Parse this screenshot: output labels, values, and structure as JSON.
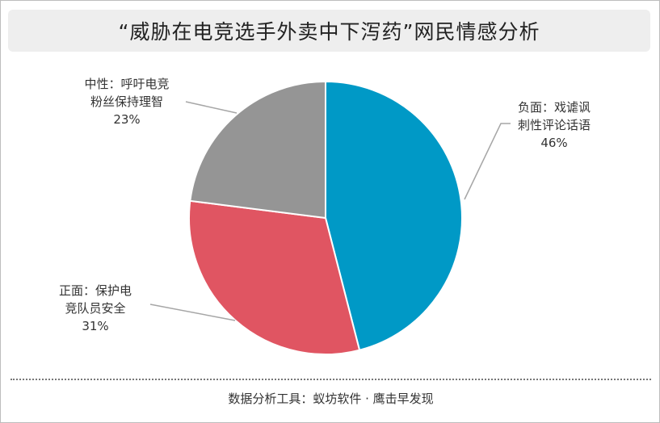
{
  "chart_data": {
    "type": "pie",
    "title": "“威胁在电竞选手外卖中下泻药”网民情感分析",
    "slices": [
      {
        "name": "负面：戏谑讽刺性评论话语",
        "label_lines": [
          "负面：戏谑讽",
          "刺性评论话语"
        ],
        "value": 46,
        "value_label": "46%",
        "color": "#0099c6"
      },
      {
        "name": "正面：保护电竞队员安全",
        "label_lines": [
          "正面：保护电",
          "竞队员安全"
        ],
        "value": 31,
        "value_label": "31%",
        "color": "#e05562"
      },
      {
        "name": "中性：呼吁电竞粉丝保持理智",
        "label_lines": [
          "中性：呼吁电竞",
          "粉丝保持理智"
        ],
        "value": 23,
        "value_label": "23%",
        "color": "#959595"
      }
    ],
    "legend": "none"
  },
  "footer": "数据分析工具：蚁坊软件 · 鹰击早发现"
}
